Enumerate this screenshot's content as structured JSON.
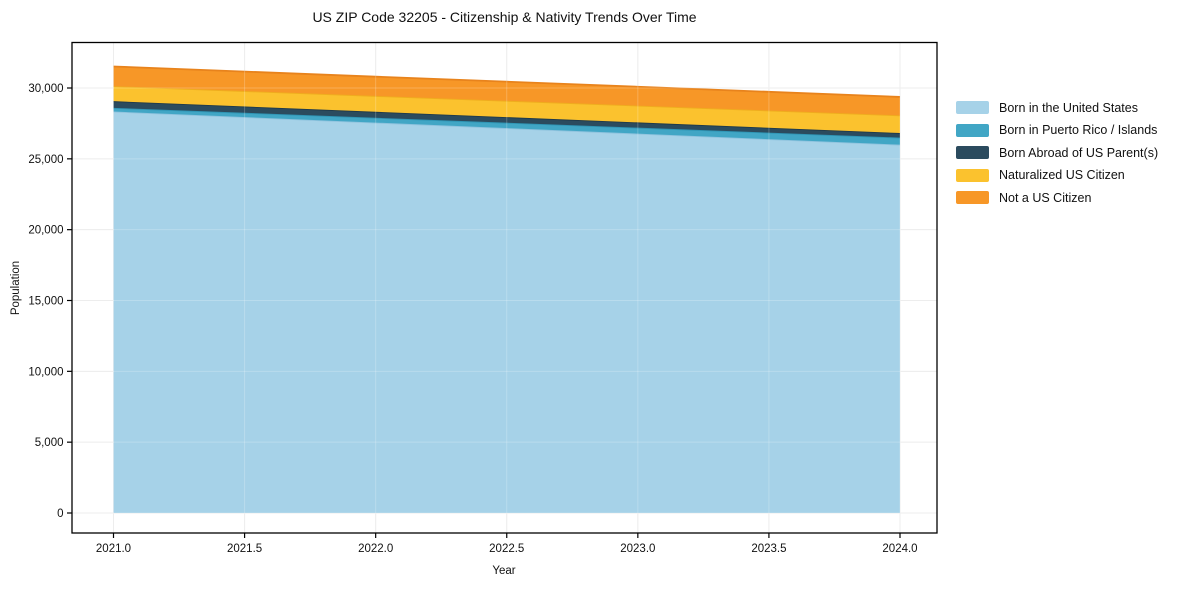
{
  "figure": {
    "title": "US ZIP Code 32205 - Citizenship & Nativity Trends Over Time",
    "xlabel": "Year",
    "ylabel": "Population"
  },
  "chart_data": {
    "type": "area",
    "stacked": true,
    "title": "US ZIP Code 32205 - Citizenship & Nativity Trends Over Time",
    "xlabel": "Year",
    "ylabel": "Population",
    "x": [
      2021,
      2022,
      2023,
      2024
    ],
    "series": [
      {
        "name": "Born in the United States",
        "color": "#A6D2E8",
        "edge_color": "#8FC3DE",
        "values": [
          28340,
          27560,
          26780,
          26000
        ]
      },
      {
        "name": "Born in Puerto Rico / Islands",
        "color": "#41A6C5",
        "edge_color": "#2E94B4",
        "values": [
          260,
          340,
          420,
          500
        ]
      },
      {
        "name": "Born Abroad of US Parent(s)",
        "color": "#2B4B5E",
        "edge_color": "#1F3A4B",
        "values": [
          470,
          420,
          370,
          320
        ]
      },
      {
        "name": "Naturalized US Citizen",
        "color": "#FBC22E",
        "edge_color": "#EFAD1E",
        "values": [
          1060,
          1120,
          1190,
          1250
        ]
      },
      {
        "name": "Not a US Citizen",
        "color": "#F79727",
        "edge_color": "#E8831C",
        "values": [
          1390,
          1360,
          1330,
          1300
        ]
      }
    ],
    "totals": [
      31520,
      30800,
      30090,
      29370
    ],
    "x_tick_labels": [
      "2021.0",
      "2021.5",
      "2022.0",
      "2022.5",
      "2023.0",
      "2023.5",
      "2024.0"
    ],
    "x_tick_values": [
      2021,
      2021.5,
      2022,
      2022.5,
      2023,
      2023.5,
      2024
    ],
    "y_tick_labels": [
      "0",
      "5,000",
      "10,000",
      "15,000",
      "20,000",
      "25,000",
      "30,000"
    ],
    "y_tick_values": [
      0,
      5000,
      10000,
      15000,
      20000,
      25000,
      30000
    ],
    "xlim": [
      2020.84,
      2024.14
    ],
    "ylim": [
      -1410,
      33180
    ],
    "grid": true,
    "grid_color": "#e8e8e8",
    "spine_color": "#000000",
    "legend_position": "right-outside",
    "fill_opacity": 1
  }
}
